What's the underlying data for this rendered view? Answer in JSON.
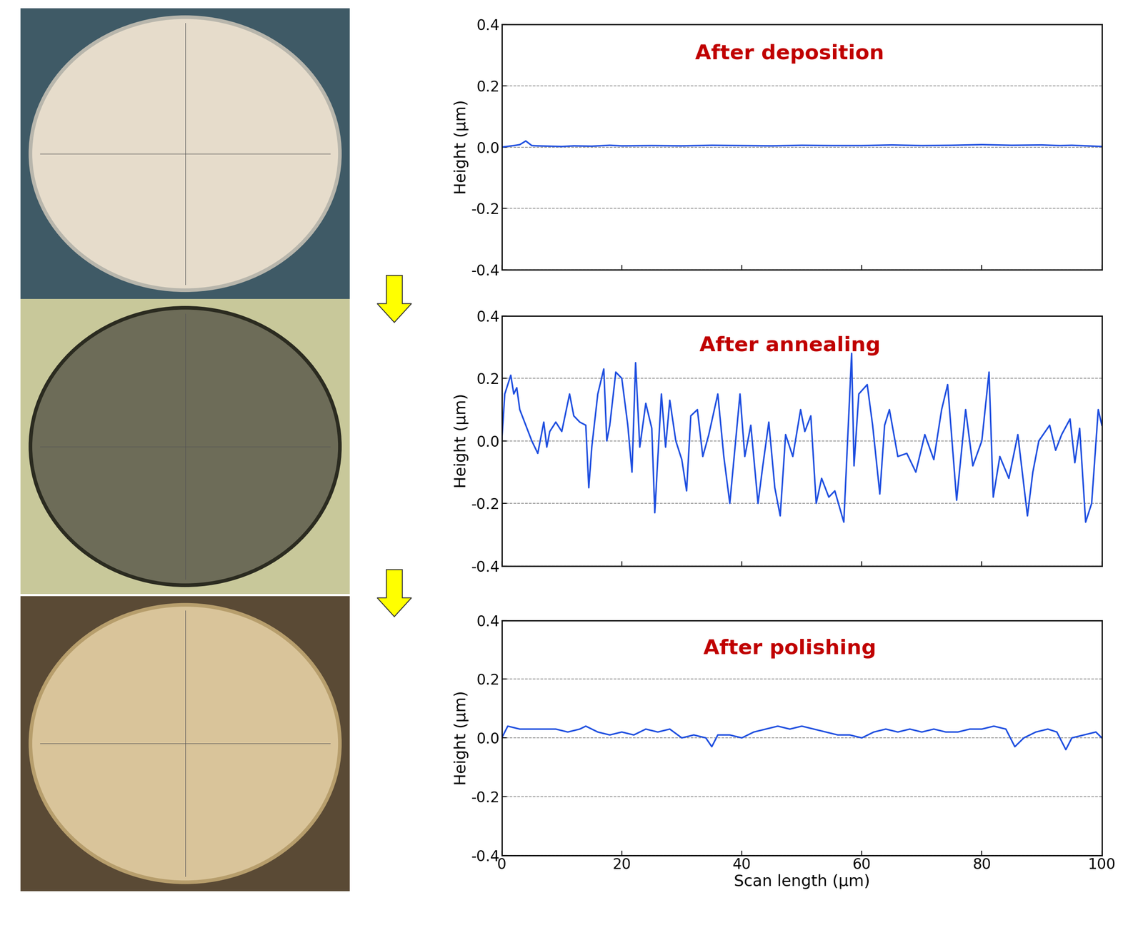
{
  "chart_data": [
    {
      "type": "line",
      "title": "After deposition",
      "y_label": "Height (µm)",
      "x": [
        0,
        2,
        3,
        4,
        5,
        6,
        8,
        10,
        12,
        15,
        18,
        20,
        25,
        30,
        35,
        40,
        45,
        50,
        55,
        60,
        65,
        70,
        75,
        80,
        85,
        90,
        93,
        95,
        100
      ],
      "values": [
        0.0,
        0.005,
        0.008,
        0.02,
        0.005,
        0.004,
        0.003,
        0.002,
        0.004,
        0.003,
        0.006,
        0.004,
        0.005,
        0.004,
        0.006,
        0.005,
        0.004,
        0.006,
        0.005,
        0.005,
        0.007,
        0.005,
        0.006,
        0.008,
        0.006,
        0.007,
        0.005,
        0.006,
        0.002
      ],
      "color": "#1f4fe0",
      "line_style": "solid",
      "xlim": [
        0,
        100
      ],
      "ylim": [
        -0.4,
        0.4
      ],
      "xticks": [
        0,
        20,
        40,
        60,
        80,
        100
      ],
      "yticks": [
        -0.4,
        -0.2,
        {
          "value": 0,
          "label": "0.0"
        },
        0.2,
        0.4
      ],
      "grid": true,
      "tick_labels": "y"
    },
    {
      "type": "line",
      "title": "After annealing",
      "y_label": "Height (µm)",
      "x": [
        0,
        0.5,
        1,
        1.5,
        2,
        2.5,
        3,
        4,
        5,
        6,
        7,
        7.5,
        8,
        9,
        10,
        11.3,
        12,
        13,
        14,
        14.5,
        15,
        16,
        17,
        17.5,
        18,
        19,
        20,
        21,
        21.7,
        22.3,
        23,
        24,
        25,
        25.5,
        26.6,
        27.3,
        28,
        29,
        30,
        30.8,
        31.5,
        32.6,
        33.5,
        34.5,
        36,
        37,
        38,
        39.7,
        40.5,
        41.5,
        42.7,
        43.5,
        44.5,
        45.5,
        46.4,
        47.3,
        48.5,
        49.8,
        50.5,
        51.5,
        52.4,
        53.3,
        54.5,
        55.5,
        57,
        58.3,
        58.7,
        59.5,
        60.9,
        61.8,
        63,
        63.8,
        64.6,
        66,
        67.5,
        69,
        70.5,
        72,
        73.3,
        74.3,
        75.8,
        77.3,
        78.5,
        80,
        81.2,
        81.9,
        83,
        84.5,
        86,
        87.6,
        88.5,
        89.5,
        91.3,
        92.3,
        93.3,
        94.7,
        95.5,
        96.3,
        97.3,
        98.3,
        99.4,
        100
      ],
      "values": [
        0.0,
        0.15,
        0.18,
        0.21,
        0.15,
        0.17,
        0.1,
        0.05,
        0.0,
        -0.04,
        0.06,
        -0.02,
        0.03,
        0.06,
        0.03,
        0.15,
        0.08,
        0.06,
        0.05,
        -0.15,
        -0.02,
        0.15,
        0.23,
        0.0,
        0.05,
        0.22,
        0.2,
        0.05,
        -0.1,
        0.25,
        -0.02,
        0.12,
        0.04,
        -0.23,
        0.15,
        -0.02,
        0.13,
        0.0,
        -0.06,
        -0.16,
        0.08,
        0.1,
        -0.05,
        0.02,
        0.15,
        -0.05,
        -0.2,
        0.15,
        -0.05,
        0.05,
        -0.2,
        -0.08,
        0.06,
        -0.15,
        -0.24,
        0.02,
        -0.05,
        0.1,
        0.03,
        0.08,
        -0.2,
        -0.12,
        -0.18,
        -0.16,
        -0.26,
        0.28,
        -0.08,
        0.15,
        0.18,
        0.05,
        -0.17,
        0.05,
        0.1,
        -0.05,
        -0.04,
        -0.1,
        0.02,
        -0.06,
        0.1,
        0.18,
        -0.19,
        0.1,
        -0.08,
        0.0,
        0.22,
        -0.18,
        -0.05,
        -0.12,
        0.02,
        -0.24,
        -0.1,
        0.0,
        0.05,
        -0.03,
        0.02,
        0.07,
        -0.07,
        0.04,
        -0.26,
        -0.2,
        0.1,
        0.05
      ],
      "color": "#1f4fe0",
      "line_style": "solid",
      "xlim": [
        0,
        100
      ],
      "ylim": [
        -0.4,
        0.4
      ],
      "xticks": [
        0,
        20,
        40,
        60,
        80,
        100
      ],
      "yticks": [
        -0.4,
        -0.2,
        {
          "value": 0,
          "label": "0.0"
        },
        0.2,
        0.4
      ],
      "grid": true,
      "tick_labels": "y"
    },
    {
      "type": "line",
      "title": "After polishing",
      "y_label": "Height (µm)",
      "x_label": "Scan length (µm)",
      "x": [
        0,
        1,
        3,
        5,
        7,
        9,
        11,
        13,
        14,
        16,
        18,
        20,
        22,
        24,
        26,
        28,
        30,
        32,
        34,
        35,
        36,
        38,
        40,
        42,
        44,
        46,
        48,
        50,
        52,
        54,
        56,
        58,
        60,
        62,
        64,
        66,
        68,
        70,
        72,
        74,
        76,
        78,
        80,
        82,
        84,
        85.5,
        87,
        89,
        91,
        92.5,
        94,
        95,
        97,
        99,
        100
      ],
      "values": [
        0.0,
        0.04,
        0.03,
        0.03,
        0.03,
        0.03,
        0.02,
        0.03,
        0.04,
        0.02,
        0.01,
        0.02,
        0.01,
        0.03,
        0.02,
        0.03,
        0.0,
        0.01,
        0.0,
        -0.03,
        0.01,
        0.01,
        0.0,
        0.02,
        0.03,
        0.04,
        0.03,
        0.04,
        0.03,
        0.02,
        0.01,
        0.01,
        0.0,
        0.02,
        0.03,
        0.02,
        0.03,
        0.02,
        0.03,
        0.02,
        0.02,
        0.03,
        0.03,
        0.04,
        0.03,
        -0.03,
        0.0,
        0.02,
        0.03,
        0.02,
        -0.04,
        0.0,
        0.01,
        0.02,
        0.0
      ],
      "color": "#1f4fe0",
      "line_style": "solid",
      "xlim": [
        0,
        100
      ],
      "ylim": [
        -0.4,
        0.4
      ],
      "xticks": [
        0,
        20,
        40,
        60,
        80,
        100
      ],
      "yticks": [
        -0.4,
        -0.2,
        {
          "value": 0,
          "label": "0.0"
        },
        0.2,
        0.4
      ],
      "grid": true,
      "tick_labels": true
    }
  ]
}
